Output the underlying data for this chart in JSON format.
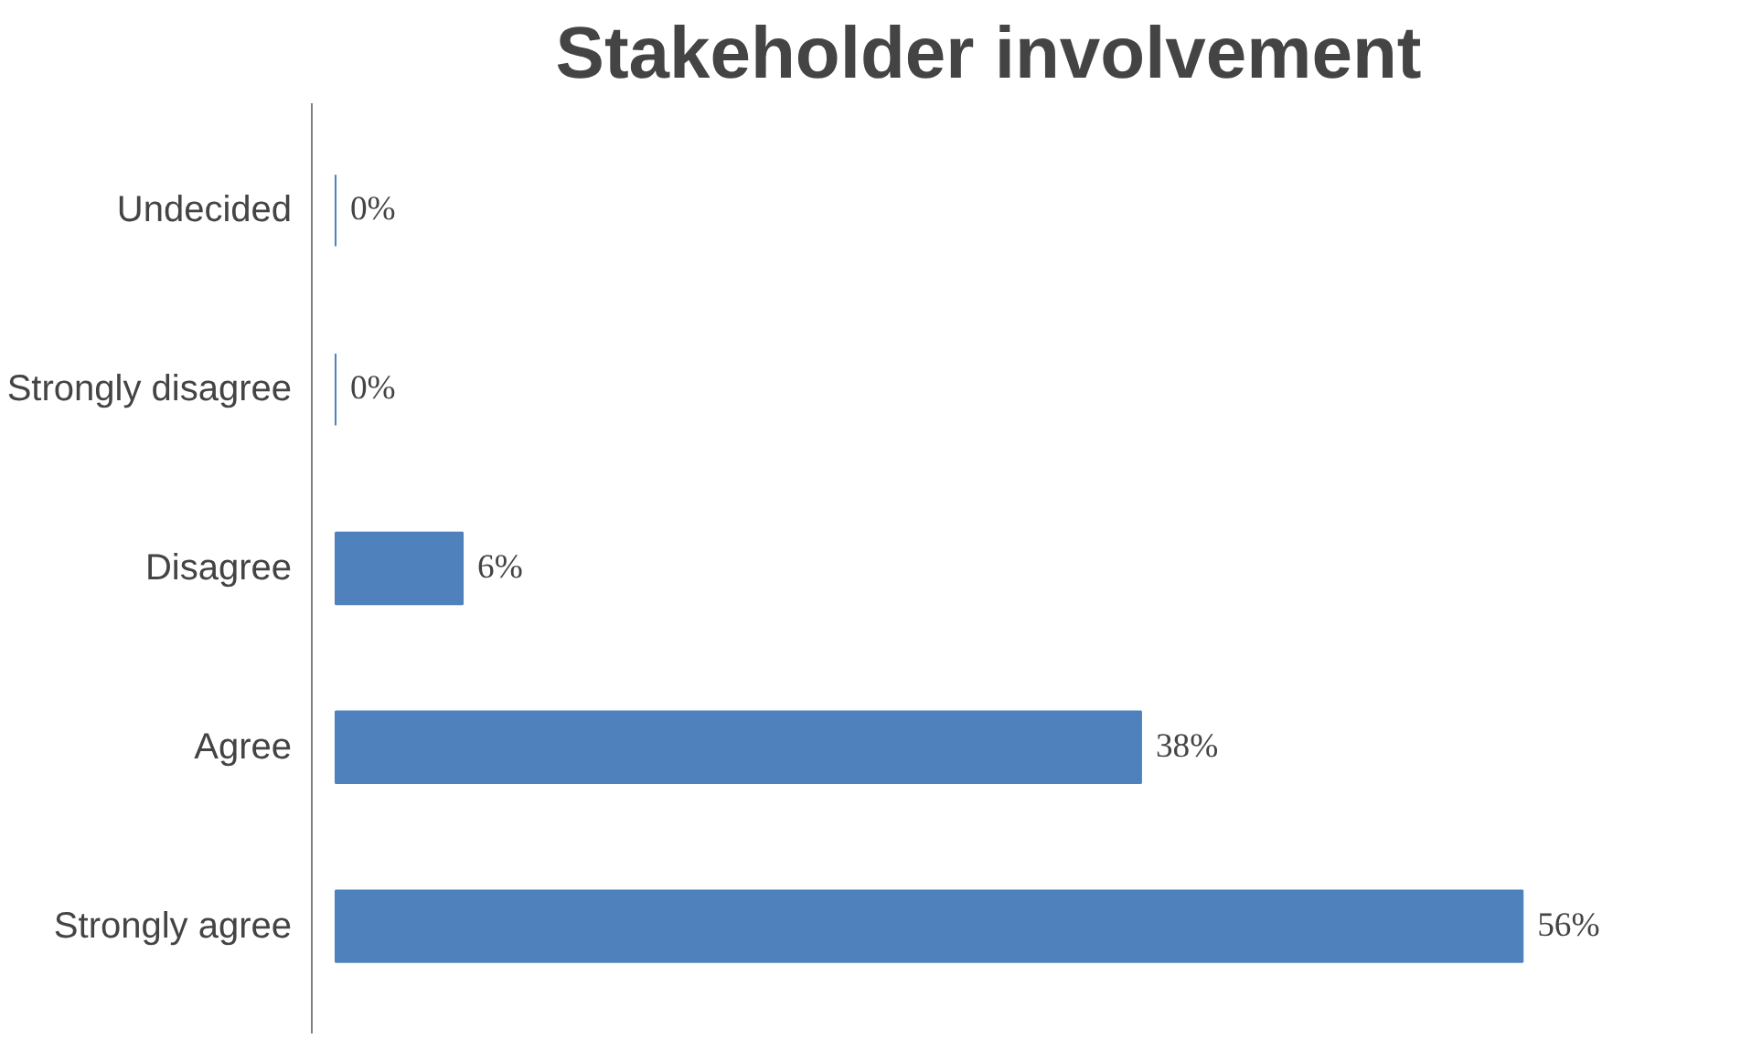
{
  "chart_data": {
    "type": "bar",
    "orientation": "horizontal",
    "title": "Stakeholder involvement",
    "categories": [
      "Undecided",
      "Strongly disagree",
      "Disagree",
      "Agree",
      "Strongly agree"
    ],
    "values": [
      0,
      0,
      6,
      38,
      56
    ],
    "value_labels": [
      "0%",
      "0%",
      "6%",
      "38%",
      "56%"
    ],
    "color": "#4f81bd"
  }
}
